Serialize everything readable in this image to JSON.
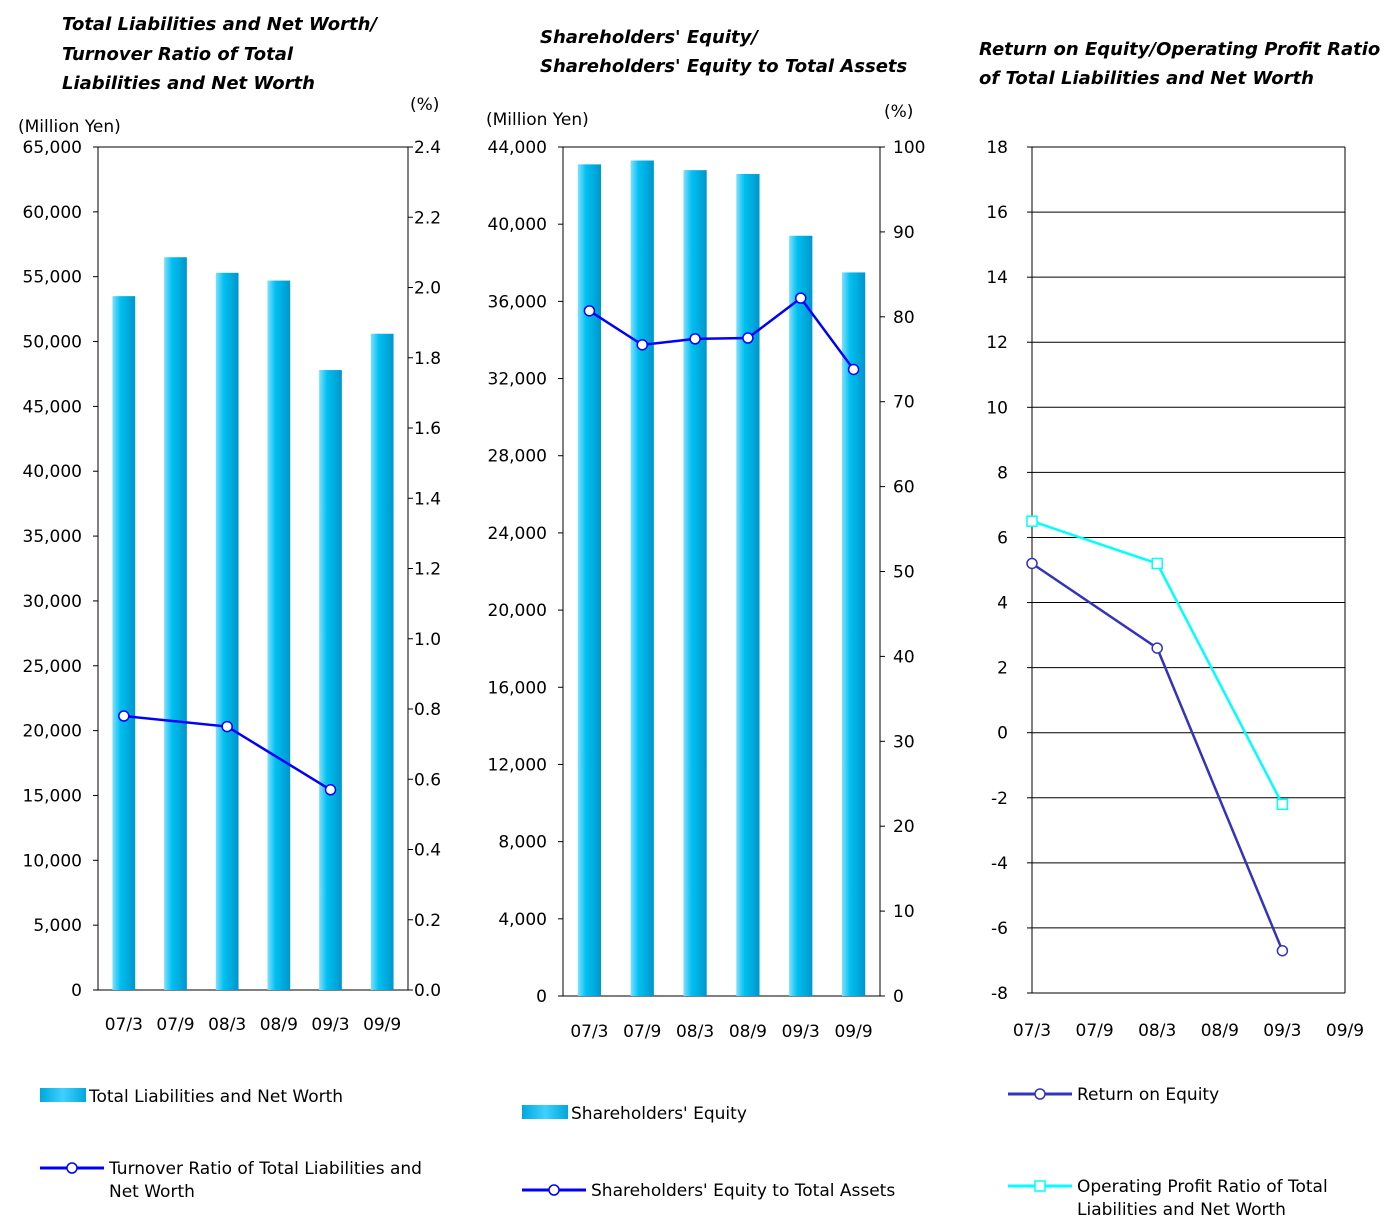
{
  "chart_data": [
    {
      "type": "bar",
      "title_lines": [
        "Total Liabilities and Net Worth/",
        "Turnover Ratio of Total",
        "Liabilities and Net Worth"
      ],
      "ylabel_left": "(Million Yen)",
      "ylabel_right": "(%)",
      "categories": [
        "07/3",
        "07/9",
        "08/3",
        "08/9",
        "09/3",
        "09/9"
      ],
      "ylim_left": [
        0,
        65000
      ],
      "yticks_left": [
        0,
        5000,
        10000,
        15000,
        20000,
        25000,
        30000,
        35000,
        40000,
        45000,
        50000,
        55000,
        60000,
        65000
      ],
      "ytick_labels_left": [
        "0",
        "5,000",
        "10,000",
        "15,000",
        "20,000",
        "25,000",
        "30,000",
        "35,000",
        "40,000",
        "45,000",
        "50,000",
        "55,000",
        "60,000",
        "65,000"
      ],
      "ylim_right": [
        0,
        2.4
      ],
      "yticks_right": [
        0,
        0.2,
        0.4,
        0.6,
        0.8,
        1.0,
        1.2,
        1.4,
        1.6,
        1.8,
        2.0,
        2.2,
        2.4
      ],
      "ytick_labels_right": [
        "0.0",
        "0.2",
        "0.4",
        "0.6",
        "0.8",
        "1.0",
        "1.2",
        "1.4",
        "1.6",
        "1.8",
        "2.0",
        "2.2",
        "2.4"
      ],
      "grid": false,
      "series": [
        {
          "name": "Total Liabilities and Net Worth",
          "kind": "bar",
          "axis": "left",
          "color": "#00b4e6",
          "values": [
            53500,
            56500,
            55300,
            54700,
            47800,
            50600
          ]
        },
        {
          "name": "Turnover Ratio of Total Liabilities and Net Worth",
          "kind": "line",
          "axis": "right",
          "color": "#0000ff",
          "marker": "circle",
          "values": [
            0.78,
            null,
            0.75,
            null,
            0.57,
            null
          ]
        }
      ]
    },
    {
      "type": "bar",
      "title_lines": [
        "Shareholders' Equity/",
        "Shareholders' Equity to Total Assets"
      ],
      "ylabel_left": "(Million Yen)",
      "ylabel_right": "(%)",
      "categories": [
        "07/3",
        "07/9",
        "08/3",
        "08/9",
        "09/3",
        "09/9"
      ],
      "ylim_left": [
        0,
        44000
      ],
      "yticks_left": [
        0,
        4000,
        8000,
        12000,
        16000,
        20000,
        24000,
        28000,
        32000,
        36000,
        40000,
        44000
      ],
      "ytick_labels_left": [
        "0",
        "4,000",
        "8,000",
        "12,000",
        "16,000",
        "20,000",
        "24,000",
        "28,000",
        "32,000",
        "36,000",
        "40,000",
        "44,000"
      ],
      "ylim_right": [
        0,
        100
      ],
      "yticks_right": [
        0,
        10,
        20,
        30,
        40,
        50,
        60,
        70,
        80,
        90,
        100
      ],
      "ytick_labels_right": [
        "0",
        "10",
        "20",
        "30",
        "40",
        "50",
        "60",
        "70",
        "80",
        "90",
        "100"
      ],
      "grid": false,
      "series": [
        {
          "name": "Shareholders' Equity",
          "kind": "bar",
          "axis": "left",
          "color": "#00b4e6",
          "values": [
            43100,
            43300,
            42800,
            42600,
            39400,
            37500
          ]
        },
        {
          "name": "Shareholders' Equity to Total Assets",
          "kind": "line",
          "axis": "right",
          "color": "#0000ff",
          "marker": "circle",
          "values": [
            80.7,
            76.7,
            77.4,
            77.5,
            82.2,
            73.8
          ]
        }
      ]
    },
    {
      "type": "line",
      "title_lines": [
        "Return on Equity/Operating Profit Ratio",
        "of Total Liabilities and Net Worth"
      ],
      "categories": [
        "07/3",
        "07/9",
        "08/3",
        "08/9",
        "09/3",
        "09/9"
      ],
      "ylim": [
        -8,
        18
      ],
      "yticks": [
        -8,
        -6,
        -4,
        -2,
        0,
        2,
        4,
        6,
        8,
        10,
        12,
        14,
        16,
        18
      ],
      "ytick_labels": [
        "-8",
        "-6",
        "-4",
        "-2",
        "0",
        "2",
        "4",
        "6",
        "8",
        "10",
        "12",
        "14",
        "16",
        "18"
      ],
      "grid": true,
      "series": [
        {
          "name": "Return on Equity",
          "kind": "line",
          "color": "#3333bb",
          "marker": "circle",
          "values": [
            5.2,
            null,
            2.6,
            null,
            -6.7,
            null
          ]
        },
        {
          "name": "Operating Profit Ratio of Total Liabilities and Net Worth",
          "kind": "line",
          "color": "#00ffff",
          "marker": "square",
          "values": [
            6.5,
            null,
            5.2,
            null,
            -2.2,
            null
          ]
        }
      ]
    }
  ],
  "legends": [
    [
      "Total Liabilities and Net Worth",
      "Turnover Ratio of Total Liabilities and|Net Worth"
    ],
    [
      "Shareholders' Equity",
      "Shareholders' Equity to Total Assets"
    ],
    [
      "Return on Equity",
      "Operating Profit Ratio of Total|Liabilities and Net Worth"
    ]
  ]
}
